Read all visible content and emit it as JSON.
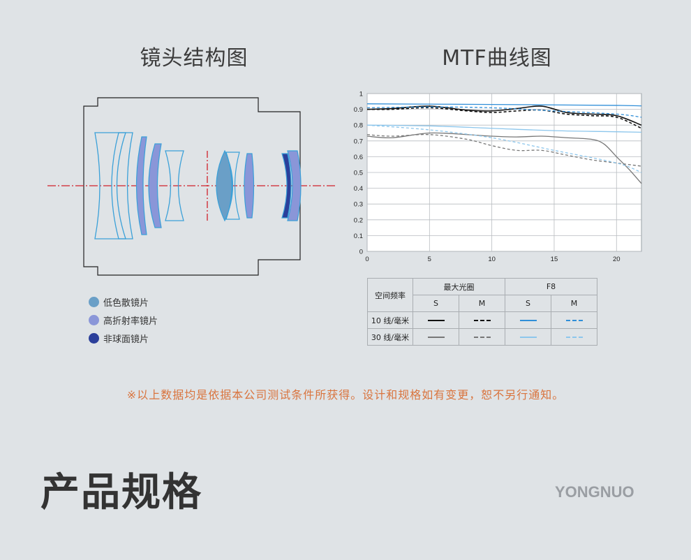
{
  "lens_section": {
    "title": "镜头结构图"
  },
  "mtf_section": {
    "title": "MTF曲线图"
  },
  "legend": [
    {
      "label": "低色散镜片",
      "color": "#6a9fc7"
    },
    {
      "label": "高折射率镜片",
      "color": "#8a96d8"
    },
    {
      "label": "非球面镜片",
      "color": "#2b3f9a"
    }
  ],
  "chart_data": {
    "type": "line",
    "title": "",
    "xlabel": "",
    "ylabel": "",
    "xlim": [
      0,
      22
    ],
    "ylim": [
      0,
      1
    ],
    "x_ticks": [
      "0",
      "5",
      "10",
      "15",
      "20"
    ],
    "y_ticks": [
      "0",
      "0.1",
      "0.2",
      "0.3",
      "0.4",
      "0.5",
      "0.6",
      "0.7",
      "0.8",
      "0.9",
      "1"
    ],
    "grid": true,
    "series": [
      {
        "name": "最大光圈 10线/毫米 S",
        "color": "#111111",
        "dash": "solid",
        "x": [
          0,
          2,
          5,
          8,
          10,
          12,
          14,
          16,
          18,
          20,
          22
        ],
        "y": [
          0.9,
          0.905,
          0.92,
          0.895,
          0.89,
          0.905,
          0.92,
          0.88,
          0.87,
          0.86,
          0.8
        ]
      },
      {
        "name": "最大光圈 10线/毫米 M",
        "color": "#111111",
        "dash": "dashed",
        "x": [
          0,
          2,
          5,
          8,
          10,
          12,
          14,
          16,
          18,
          20,
          22
        ],
        "y": [
          0.9,
          0.9,
          0.91,
          0.89,
          0.88,
          0.89,
          0.895,
          0.87,
          0.86,
          0.85,
          0.78
        ]
      },
      {
        "name": "F8 10线/毫米 S",
        "color": "#2f8ed8",
        "dash": "solid",
        "x": [
          0,
          5,
          10,
          15,
          20,
          22
        ],
        "y": [
          0.935,
          0.933,
          0.931,
          0.928,
          0.925,
          0.922
        ]
      },
      {
        "name": "F8 10线/毫米 M",
        "color": "#2f8ed8",
        "dash": "dashed",
        "x": [
          0,
          5,
          10,
          15,
          20,
          22
        ],
        "y": [
          0.91,
          0.915,
          0.91,
          0.89,
          0.87,
          0.85
        ]
      },
      {
        "name": "最大光圈 30线/毫米 S",
        "color": "#777777",
        "dash": "solid",
        "x": [
          0,
          2,
          5,
          8,
          10,
          12,
          14,
          16,
          18,
          19,
          20,
          21,
          22
        ],
        "y": [
          0.73,
          0.72,
          0.75,
          0.74,
          0.73,
          0.725,
          0.73,
          0.72,
          0.71,
          0.68,
          0.6,
          0.52,
          0.43
        ]
      },
      {
        "name": "最大光圈 30线/毫米 M",
        "color": "#777777",
        "dash": "dashed",
        "x": [
          0,
          2,
          5,
          8,
          10,
          12,
          14,
          16,
          18,
          20,
          22
        ],
        "y": [
          0.74,
          0.73,
          0.74,
          0.71,
          0.67,
          0.64,
          0.64,
          0.61,
          0.58,
          0.56,
          0.54
        ]
      },
      {
        "name": "F8 30线/毫米 S",
        "color": "#8cc6ec",
        "dash": "solid",
        "x": [
          0,
          5,
          10,
          15,
          20,
          22
        ],
        "y": [
          0.8,
          0.795,
          0.78,
          0.765,
          0.758,
          0.755
        ]
      },
      {
        "name": "F8 30线/毫米 M",
        "color": "#8cc6ec",
        "dash": "dashed",
        "x": [
          0,
          5,
          10,
          15,
          20,
          22
        ],
        "y": [
          0.8,
          0.77,
          0.72,
          0.64,
          0.56,
          0.5
        ]
      }
    ]
  },
  "mtf_table": {
    "row_header": "空间频率",
    "group_max": "最大光圈",
    "group_f8": "F8",
    "s": "S",
    "m": "M",
    "rows": [
      {
        "label": "10 线/毫米",
        "colors": [
          "#111111",
          "#111111",
          "#2f8ed8",
          "#2f8ed8"
        ]
      },
      {
        "label": "30 线/毫米",
        "colors": [
          "#777777",
          "#777777",
          "#8cc6ec",
          "#8cc6ec"
        ]
      }
    ]
  },
  "disclaimer": "※以上数据均是依据本公司测试条件所获得。设计和规格如有变更，恕不另行通知。",
  "spec_title": "产品规格",
  "brand": "YONGNUO"
}
